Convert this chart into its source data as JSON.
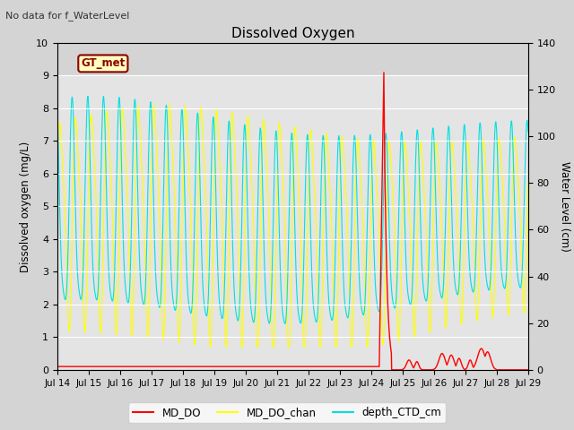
{
  "title": "Dissolved Oxygen",
  "ylabel_left": "Dissolved oxygen (mg/L)",
  "ylabel_right": "Water Level (cm)",
  "ylim_left": [
    0,
    10.0
  ],
  "ylim_right": [
    0,
    140
  ],
  "yticks_left": [
    0.0,
    1.0,
    2.0,
    3.0,
    4.0,
    5.0,
    6.0,
    7.0,
    8.0,
    9.0,
    10.0
  ],
  "yticks_right": [
    0,
    20,
    40,
    60,
    80,
    100,
    120,
    140
  ],
  "xtick_labels": [
    "Jul 14",
    "Jul 15",
    "Jul 16",
    "Jul 17",
    "Jul 18",
    "Jul 19",
    "Jul 20",
    "Jul 21",
    "Jul 22",
    "Jul 23",
    "Jul 24",
    "Jul 25",
    "Jul 26",
    "Jul 27",
    "Jul 28",
    "Jul 29"
  ],
  "bg_color": "#d4d4d4",
  "plot_bg_color_top": "#d8d8d8",
  "plot_bg_color_bot": "#e8e8e8",
  "no_data_text": "No data for f_WaterLevel",
  "gt_met_label": "GT_met",
  "color_do": "#ff0000",
  "color_chan": "#ffff00",
  "color_depth": "#00e0e0",
  "legend_labels": [
    "MD_DO",
    "MD_DO_chan",
    "depth_CTD_cm"
  ],
  "gt_met_bg": "#ffffc0",
  "gt_met_edge": "#8B0000"
}
